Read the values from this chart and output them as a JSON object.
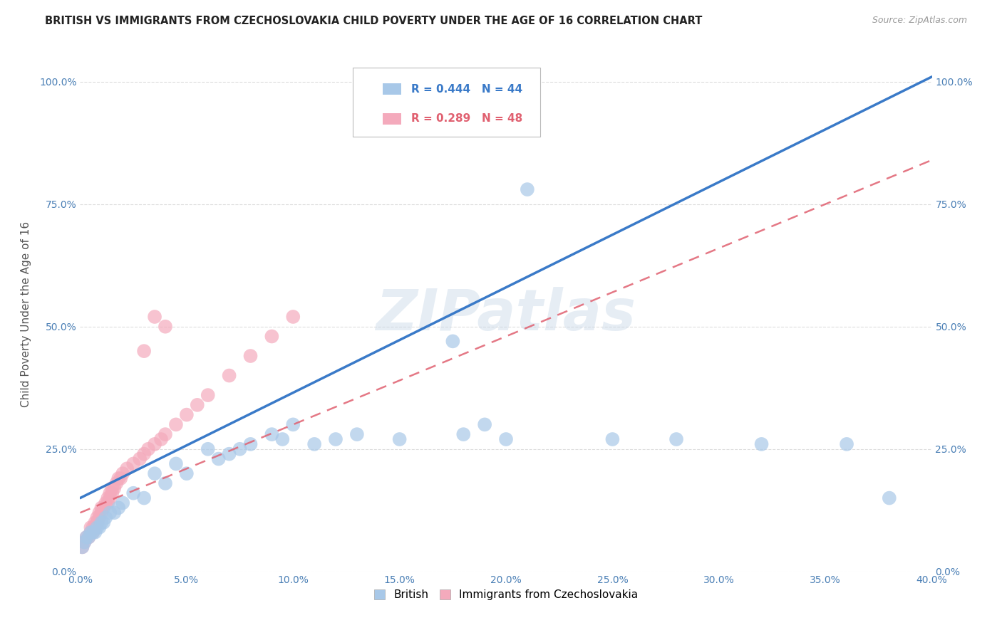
{
  "title": "BRITISH VS IMMIGRANTS FROM CZECHOSLOVAKIA CHILD POVERTY UNDER THE AGE OF 16 CORRELATION CHART",
  "source": "Source: ZipAtlas.com",
  "ylabel": "Child Poverty Under the Age of 16",
  "xlim": [
    0.0,
    0.4
  ],
  "ylim": [
    0.0,
    1.05
  ],
  "xtick_labels": [
    "0.0%",
    "5.0%",
    "10.0%",
    "15.0%",
    "20.0%",
    "25.0%",
    "30.0%",
    "35.0%",
    "40.0%"
  ],
  "xtick_values": [
    0.0,
    0.05,
    0.1,
    0.15,
    0.2,
    0.25,
    0.3,
    0.35,
    0.4
  ],
  "ytick_labels": [
    "0.0%",
    "25.0%",
    "50.0%",
    "75.0%",
    "100.0%"
  ],
  "ytick_values": [
    0.0,
    0.25,
    0.5,
    0.75,
    1.0
  ],
  "british_color": "#a8c8e8",
  "czech_color": "#f4aabc",
  "british_line_color": "#3a7ac8",
  "czech_line_color": "#e06070",
  "british_R": 0.444,
  "british_N": 44,
  "czech_R": 0.289,
  "czech_N": 48,
  "watermark": "ZIPatlas",
  "watermark_color": "#c8d8e8",
  "background_color": "#ffffff",
  "grid_color": "#dddddd",
  "title_color": "#222222",
  "british_x": [
    0.001,
    0.002,
    0.003,
    0.004,
    0.005,
    0.006,
    0.007,
    0.008,
    0.009,
    0.01,
    0.011,
    0.012,
    0.014,
    0.016,
    0.018,
    0.02,
    0.025,
    0.03,
    0.035,
    0.04,
    0.045,
    0.05,
    0.06,
    0.065,
    0.07,
    0.075,
    0.08,
    0.09,
    0.095,
    0.1,
    0.11,
    0.12,
    0.13,
    0.15,
    0.175,
    0.18,
    0.19,
    0.2,
    0.21,
    0.25,
    0.28,
    0.32,
    0.36,
    0.38
  ],
  "british_y": [
    0.05,
    0.06,
    0.07,
    0.07,
    0.08,
    0.08,
    0.08,
    0.09,
    0.09,
    0.1,
    0.1,
    0.11,
    0.12,
    0.12,
    0.13,
    0.14,
    0.16,
    0.15,
    0.2,
    0.18,
    0.22,
    0.2,
    0.25,
    0.23,
    0.24,
    0.25,
    0.26,
    0.28,
    0.27,
    0.3,
    0.26,
    0.27,
    0.28,
    0.27,
    0.47,
    0.28,
    0.3,
    0.27,
    0.78,
    0.27,
    0.27,
    0.26,
    0.26,
    0.15
  ],
  "czech_x": [
    0.001,
    0.002,
    0.003,
    0.004,
    0.005,
    0.005,
    0.006,
    0.006,
    0.007,
    0.007,
    0.008,
    0.008,
    0.009,
    0.009,
    0.01,
    0.01,
    0.011,
    0.012,
    0.013,
    0.013,
    0.014,
    0.014,
    0.015,
    0.015,
    0.016,
    0.017,
    0.018,
    0.019,
    0.02,
    0.022,
    0.025,
    0.028,
    0.03,
    0.032,
    0.035,
    0.038,
    0.04,
    0.045,
    0.05,
    0.055,
    0.06,
    0.07,
    0.08,
    0.09,
    0.1,
    0.03,
    0.035,
    0.04
  ],
  "czech_y": [
    0.05,
    0.06,
    0.07,
    0.07,
    0.08,
    0.09,
    0.08,
    0.09,
    0.09,
    0.1,
    0.1,
    0.11,
    0.11,
    0.12,
    0.12,
    0.13,
    0.13,
    0.14,
    0.14,
    0.15,
    0.15,
    0.16,
    0.16,
    0.17,
    0.17,
    0.18,
    0.19,
    0.19,
    0.2,
    0.21,
    0.22,
    0.23,
    0.24,
    0.25,
    0.26,
    0.27,
    0.28,
    0.3,
    0.32,
    0.34,
    0.36,
    0.4,
    0.44,
    0.48,
    0.52,
    0.45,
    0.52,
    0.5
  ],
  "british_line_slope": 2.15,
  "british_line_intercept": 0.15,
  "czech_line_slope": 1.8,
  "czech_line_intercept": 0.12
}
